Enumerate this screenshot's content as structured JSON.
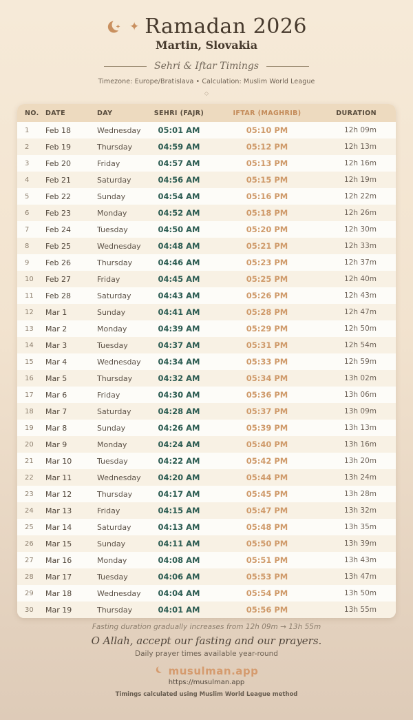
{
  "header": {
    "title": "Ramadan 2026",
    "location": "Martin, Slovakia",
    "subtitle": "Sehri & Iftar Timings",
    "meta": "Timezone: Europe/Bratislava • Calculation: Muslim World League",
    "sparkle_icon": "✦",
    "diamond_icon": "◇"
  },
  "colors": {
    "accent_copper": "#c9905f",
    "sehri_teal": "#2c5c52",
    "iftar_orange": "#cf9a6a",
    "header_band": "#eddabf",
    "card_bg": "#fdfbf7",
    "page_top": "#f6ead8",
    "page_bottom": "#decbb8"
  },
  "table": {
    "columns": [
      "NO.",
      "DATE",
      "DAY",
      "SEHRI (FAJR)",
      "IFTAR (MAGHRIB)",
      "DURATION"
    ],
    "rows": [
      {
        "no": "1",
        "date": "Feb 18",
        "day": "Wednesday",
        "sehri": "05:01 AM",
        "iftar": "05:10 PM",
        "duration": "12h 09m"
      },
      {
        "no": "2",
        "date": "Feb 19",
        "day": "Thursday",
        "sehri": "04:59 AM",
        "iftar": "05:12 PM",
        "duration": "12h 13m"
      },
      {
        "no": "3",
        "date": "Feb 20",
        "day": "Friday",
        "sehri": "04:57 AM",
        "iftar": "05:13 PM",
        "duration": "12h 16m"
      },
      {
        "no": "4",
        "date": "Feb 21",
        "day": "Saturday",
        "sehri": "04:56 AM",
        "iftar": "05:15 PM",
        "duration": "12h 19m"
      },
      {
        "no": "5",
        "date": "Feb 22",
        "day": "Sunday",
        "sehri": "04:54 AM",
        "iftar": "05:16 PM",
        "duration": "12h 22m"
      },
      {
        "no": "6",
        "date": "Feb 23",
        "day": "Monday",
        "sehri": "04:52 AM",
        "iftar": "05:18 PM",
        "duration": "12h 26m"
      },
      {
        "no": "7",
        "date": "Feb 24",
        "day": "Tuesday",
        "sehri": "04:50 AM",
        "iftar": "05:20 PM",
        "duration": "12h 30m"
      },
      {
        "no": "8",
        "date": "Feb 25",
        "day": "Wednesday",
        "sehri": "04:48 AM",
        "iftar": "05:21 PM",
        "duration": "12h 33m"
      },
      {
        "no": "9",
        "date": "Feb 26",
        "day": "Thursday",
        "sehri": "04:46 AM",
        "iftar": "05:23 PM",
        "duration": "12h 37m"
      },
      {
        "no": "10",
        "date": "Feb 27",
        "day": "Friday",
        "sehri": "04:45 AM",
        "iftar": "05:25 PM",
        "duration": "12h 40m"
      },
      {
        "no": "11",
        "date": "Feb 28",
        "day": "Saturday",
        "sehri": "04:43 AM",
        "iftar": "05:26 PM",
        "duration": "12h 43m"
      },
      {
        "no": "12",
        "date": "Mar 1",
        "day": "Sunday",
        "sehri": "04:41 AM",
        "iftar": "05:28 PM",
        "duration": "12h 47m"
      },
      {
        "no": "13",
        "date": "Mar 2",
        "day": "Monday",
        "sehri": "04:39 AM",
        "iftar": "05:29 PM",
        "duration": "12h 50m"
      },
      {
        "no": "14",
        "date": "Mar 3",
        "day": "Tuesday",
        "sehri": "04:37 AM",
        "iftar": "05:31 PM",
        "duration": "12h 54m"
      },
      {
        "no": "15",
        "date": "Mar 4",
        "day": "Wednesday",
        "sehri": "04:34 AM",
        "iftar": "05:33 PM",
        "duration": "12h 59m"
      },
      {
        "no": "16",
        "date": "Mar 5",
        "day": "Thursday",
        "sehri": "04:32 AM",
        "iftar": "05:34 PM",
        "duration": "13h 02m"
      },
      {
        "no": "17",
        "date": "Mar 6",
        "day": "Friday",
        "sehri": "04:30 AM",
        "iftar": "05:36 PM",
        "duration": "13h 06m"
      },
      {
        "no": "18",
        "date": "Mar 7",
        "day": "Saturday",
        "sehri": "04:28 AM",
        "iftar": "05:37 PM",
        "duration": "13h 09m"
      },
      {
        "no": "19",
        "date": "Mar 8",
        "day": "Sunday",
        "sehri": "04:26 AM",
        "iftar": "05:39 PM",
        "duration": "13h 13m"
      },
      {
        "no": "20",
        "date": "Mar 9",
        "day": "Monday",
        "sehri": "04:24 AM",
        "iftar": "05:40 PM",
        "duration": "13h 16m"
      },
      {
        "no": "21",
        "date": "Mar 10",
        "day": "Tuesday",
        "sehri": "04:22 AM",
        "iftar": "05:42 PM",
        "duration": "13h 20m"
      },
      {
        "no": "22",
        "date": "Mar 11",
        "day": "Wednesday",
        "sehri": "04:20 AM",
        "iftar": "05:44 PM",
        "duration": "13h 24m"
      },
      {
        "no": "23",
        "date": "Mar 12",
        "day": "Thursday",
        "sehri": "04:17 AM",
        "iftar": "05:45 PM",
        "duration": "13h 28m"
      },
      {
        "no": "24",
        "date": "Mar 13",
        "day": "Friday",
        "sehri": "04:15 AM",
        "iftar": "05:47 PM",
        "duration": "13h 32m"
      },
      {
        "no": "25",
        "date": "Mar 14",
        "day": "Saturday",
        "sehri": "04:13 AM",
        "iftar": "05:48 PM",
        "duration": "13h 35m"
      },
      {
        "no": "26",
        "date": "Mar 15",
        "day": "Sunday",
        "sehri": "04:11 AM",
        "iftar": "05:50 PM",
        "duration": "13h 39m"
      },
      {
        "no": "27",
        "date": "Mar 16",
        "day": "Monday",
        "sehri": "04:08 AM",
        "iftar": "05:51 PM",
        "duration": "13h 43m"
      },
      {
        "no": "28",
        "date": "Mar 17",
        "day": "Tuesday",
        "sehri": "04:06 AM",
        "iftar": "05:53 PM",
        "duration": "13h 47m"
      },
      {
        "no": "29",
        "date": "Mar 18",
        "day": "Wednesday",
        "sehri": "04:04 AM",
        "iftar": "05:54 PM",
        "duration": "13h 50m"
      },
      {
        "no": "30",
        "date": "Mar 19",
        "day": "Thursday",
        "sehri": "04:01 AM",
        "iftar": "05:56 PM",
        "duration": "13h 55m"
      }
    ]
  },
  "footer": {
    "fasting_note": "Fasting duration gradually increases from 12h 09m → 13h 55m",
    "dua": "O Allah, accept our fasting and our prayers.",
    "daily_note": "Daily prayer times available year-round",
    "brand": "musulman.app",
    "url": "https://musulman.app",
    "method_note": "Timings calculated using Muslim World League method"
  }
}
